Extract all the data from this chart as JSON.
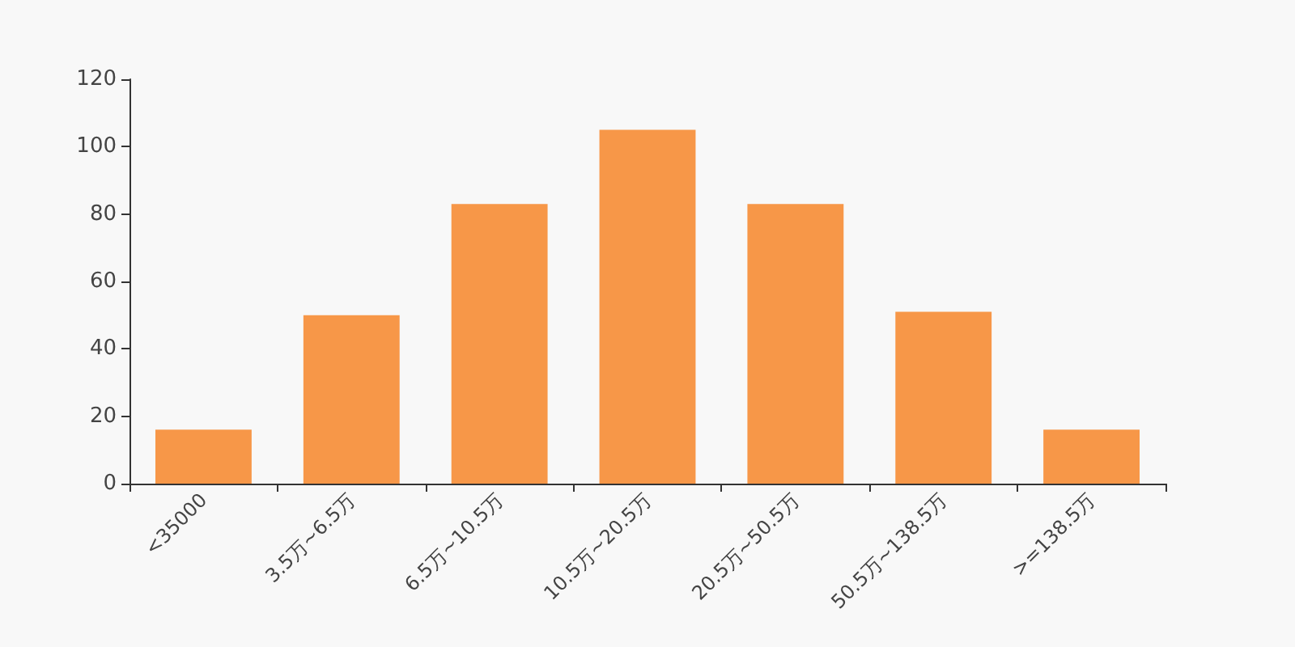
{
  "chart_data": {
    "type": "bar",
    "categories": [
      "<35000",
      "3.5万~6.5万",
      "6.5万~10.5万",
      "10.5万~20.5万",
      "20.5万~50.5万",
      "50.5万~138.5万",
      ">=138.5万"
    ],
    "values": [
      16,
      50,
      83,
      105,
      83,
      51,
      16
    ],
    "color": "#f79748",
    "ylim": [
      0,
      120
    ],
    "yticks": [
      0,
      20,
      40,
      60,
      80,
      100,
      120
    ]
  }
}
